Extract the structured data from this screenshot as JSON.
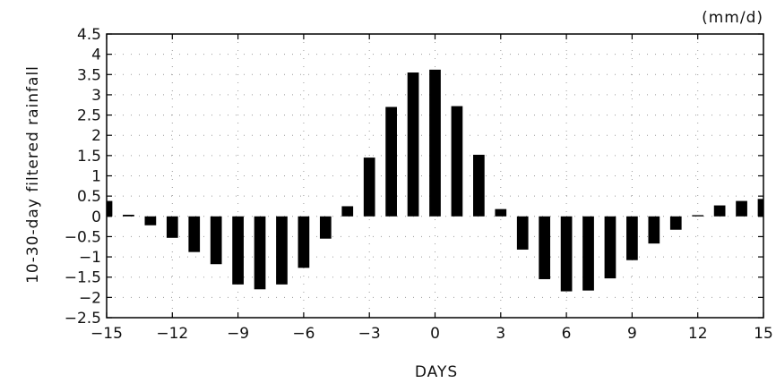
{
  "chart_data": {
    "type": "bar",
    "title": "",
    "units_label": "(mm/d)",
    "xlabel": "DAYS",
    "ylabel": "10-30-day filtered rainfall",
    "xlim": [
      -15,
      15
    ],
    "ylim": [
      -2.5,
      4.5
    ],
    "xticks": [
      -15,
      -12,
      -9,
      -6,
      -3,
      0,
      3,
      6,
      9,
      12,
      15
    ],
    "xtick_labels": [
      "−15",
      "−12",
      "−9",
      "−6",
      "−3",
      "0",
      "3",
      "6",
      "9",
      "12",
      "15"
    ],
    "yticks": [
      -2.5,
      -2,
      -1.5,
      -1,
      -0.5,
      0,
      0.5,
      1,
      1.5,
      2,
      2.5,
      3,
      3.5,
      4,
      4.5
    ],
    "ytick_labels": [
      "−2.5",
      "−2",
      "−1.5",
      "−1",
      "−0.5",
      "0",
      "0.5",
      "1",
      "1.5",
      "2",
      "2.5",
      "3",
      "3.5",
      "4",
      "4.5"
    ],
    "grid": true,
    "x": [
      -15,
      -14,
      -13,
      -12,
      -11,
      -10,
      -9,
      -8,
      -7,
      -6,
      -5,
      -4,
      -3,
      -2,
      -1,
      0,
      1,
      2,
      3,
      4,
      5,
      6,
      7,
      8,
      9,
      10,
      11,
      12,
      13,
      14,
      15
    ],
    "values": [
      0.38,
      0.04,
      -0.22,
      -0.53,
      -0.88,
      -1.18,
      -1.68,
      -1.8,
      -1.68,
      -1.27,
      -0.55,
      0.25,
      1.45,
      2.7,
      3.55,
      3.62,
      2.72,
      1.52,
      0.18,
      -0.82,
      -1.55,
      -1.85,
      -1.83,
      -1.53,
      -1.08,
      -0.67,
      -0.33,
      0.03,
      0.27,
      0.38,
      0.43
    ],
    "bar_color": "#000000"
  }
}
